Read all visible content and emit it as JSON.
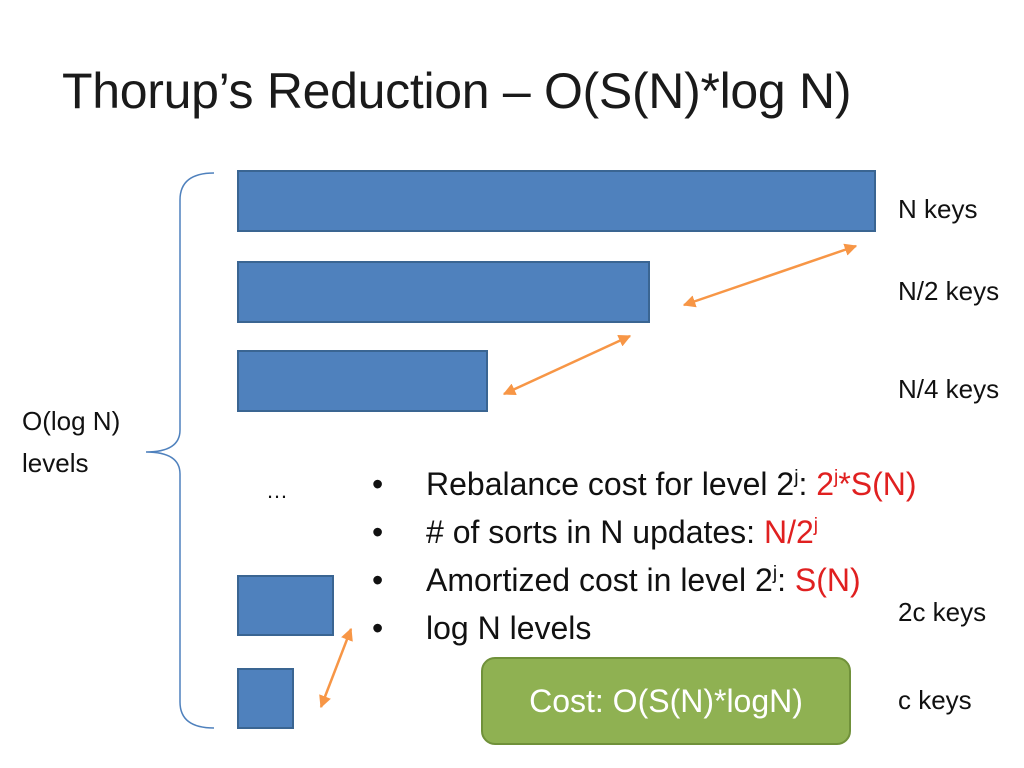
{
  "slide": {
    "title": "Thorup’s Reduction – O(S(N)*log N)",
    "brace_label_line1": "O(log N)",
    "brace_label_line2": "levels",
    "ellipsis": "…",
    "levels": [
      {
        "label": "N keys"
      },
      {
        "label": "N/2 keys"
      },
      {
        "label": "N/4 keys"
      },
      {
        "label": "2c keys"
      },
      {
        "label": "c keys"
      }
    ],
    "bullets": [
      {
        "text": "Rebalance cost for level 2",
        "sup": "j",
        "sep": ": ",
        "red_main": "2",
        "red_sup": "j",
        "red_tail": "*S(N)"
      },
      {
        "text": "# of sorts in N updates: ",
        "red_main": "N/2",
        "red_sup": "j"
      },
      {
        "text": "Amortized cost in level 2",
        "sup": "j",
        "sep": ": ",
        "red_main": "S(N)"
      },
      {
        "text": "log N levels"
      }
    ],
    "cost_box": "Cost: O(S(N)*logN)"
  },
  "colors": {
    "bar_fill": "#4f81bd",
    "arrow": "#f79646",
    "brace": "#4f81bd",
    "highlight": "#e02020",
    "cost_box_fill": "#8fb152"
  }
}
